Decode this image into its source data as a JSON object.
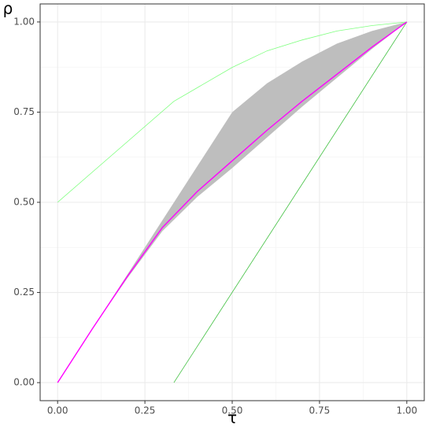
{
  "chart_data": {
    "type": "line",
    "x_label": "τ",
    "y_label": "ρ",
    "xlim": [
      -0.05,
      1.05
    ],
    "ylim": [
      -0.05,
      1.05
    ],
    "xticks": [
      {
        "value": 0,
        "label": "0.00"
      },
      {
        "value": 0.25,
        "label": "0.25"
      },
      {
        "value": 0.5,
        "label": "0.50"
      },
      {
        "value": 0.75,
        "label": "0.75"
      },
      {
        "value": 1,
        "label": "1.00"
      }
    ],
    "yticks": [
      {
        "value": 0,
        "label": "0.00"
      },
      {
        "value": 0.25,
        "label": "0.25"
      },
      {
        "value": 0.5,
        "label": "0.50"
      },
      {
        "value": 0.75,
        "label": "0.75"
      },
      {
        "value": 1,
        "label": "1.00"
      }
    ],
    "xminor": [
      0.125,
      0.375,
      0.625,
      0.875
    ],
    "yminor": [
      0.125,
      0.375,
      0.625,
      0.875
    ],
    "grid": true,
    "band": {
      "color": "#bebebe",
      "x": [
        0.1,
        0.2,
        0.3,
        0.4,
        0.5,
        0.6,
        0.7,
        0.8,
        0.9,
        1
      ],
      "upper": [
        0.15,
        0.3,
        0.45,
        0.6,
        0.75,
        0.83,
        0.89,
        0.94,
        0.975,
        1
      ],
      "lower": [
        0.15,
        0.29,
        0.42,
        0.515,
        0.595,
        0.68,
        0.765,
        0.845,
        0.925,
        1
      ]
    },
    "series": [
      {
        "color": "#80ff80",
        "x": [
          0,
          0.333,
          0.5,
          0.6,
          0.7,
          0.8,
          0.9,
          1
        ],
        "values": [
          0.5,
          0.78,
          0.874,
          0.92,
          0.95,
          0.975,
          0.99,
          1
        ]
      },
      {
        "color": "#40c040",
        "x": [
          0.333,
          1
        ],
        "values": [
          0,
          1
        ]
      },
      {
        "color": "#ff00ff",
        "x": [
          0,
          0.1,
          0.2,
          0.3,
          0.4,
          0.5,
          0.6,
          0.7,
          0.8,
          0.9,
          1
        ],
        "values": [
          0,
          0.15,
          0.295,
          0.43,
          0.53,
          0.615,
          0.7,
          0.78,
          0.855,
          0.93,
          1
        ]
      }
    ]
  }
}
